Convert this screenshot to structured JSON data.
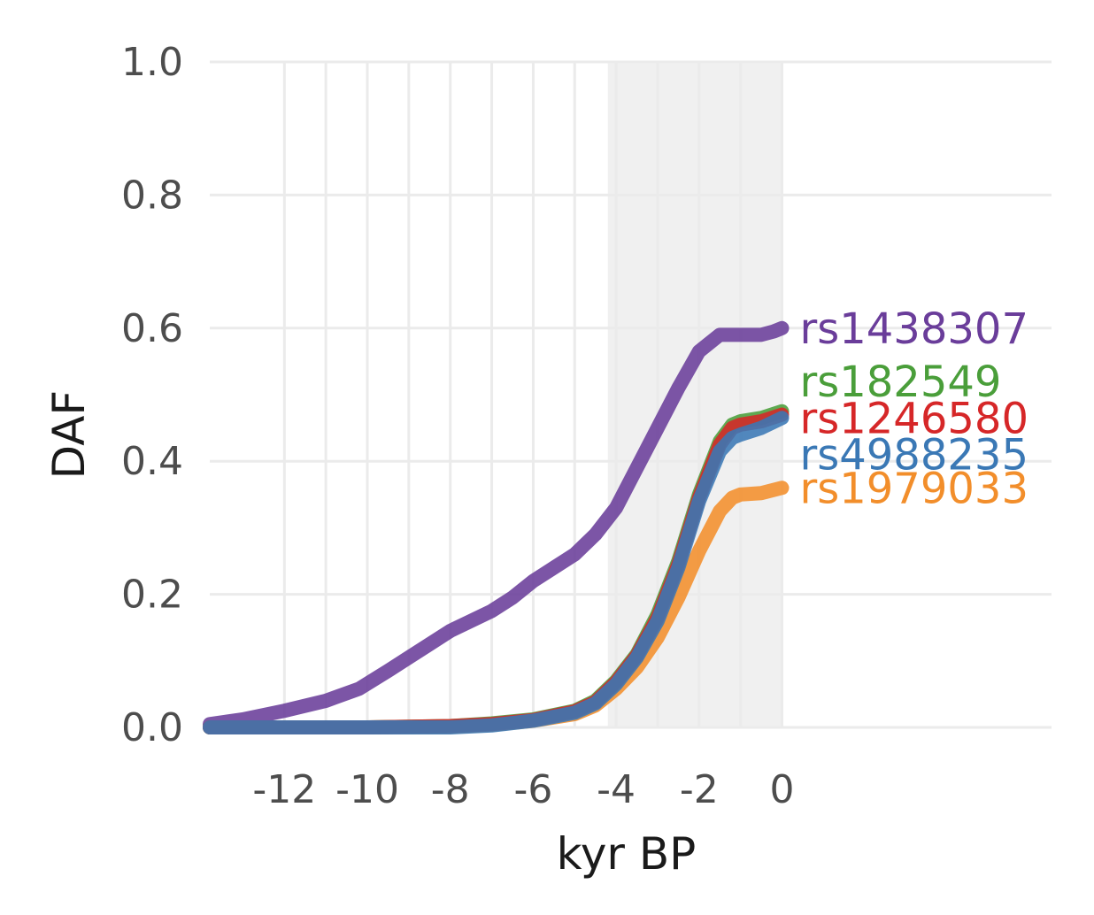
{
  "chart_data": {
    "type": "line",
    "title": "",
    "xlabel": "kyr BP",
    "ylabel": "DAF",
    "xlim": [
      -13.8,
      6.5
    ],
    "ylim": [
      0,
      1.0
    ],
    "x_ticks": [
      -12,
      -10,
      -8,
      -6,
      -4,
      -2,
      0
    ],
    "x_tick_labels": [
      "-12",
      "-10",
      "-8",
      "-6",
      "-4",
      "-2",
      "0"
    ],
    "y_ticks": [
      0,
      0.2,
      0.4,
      0.6,
      0.8,
      1.0
    ],
    "y_tick_labels": [
      "0.0",
      "0.2",
      "0.4",
      "0.6",
      "0.8",
      "1.0"
    ],
    "shaded_region": {
      "x_start": -4.2,
      "x_end": 0,
      "color": "#f0f0f0"
    },
    "grid": true,
    "series": [
      {
        "name": "rs1438307",
        "color": "#6a3d9a",
        "x": [
          -13.8,
          -13,
          -12,
          -11,
          -10.2,
          -9.5,
          -9,
          -8.5,
          -8,
          -7.5,
          -7,
          -6.5,
          -6,
          -5.5,
          -5,
          -4.5,
          -4,
          -3.5,
          -3,
          -2.5,
          -2,
          -1.5,
          -1.2,
          -1,
          -0.5,
          -0.2,
          0
        ],
        "y": [
          0.005,
          0.012,
          0.025,
          0.04,
          0.058,
          0.085,
          0.105,
          0.125,
          0.145,
          0.16,
          0.175,
          0.195,
          0.22,
          0.24,
          0.26,
          0.29,
          0.33,
          0.39,
          0.45,
          0.51,
          0.565,
          0.59,
          0.59,
          0.59,
          0.59,
          0.595,
          0.6
        ]
      },
      {
        "name": "rs182549",
        "color": "#4a9e3a",
        "x": [
          -13.8,
          -12,
          -10,
          -8,
          -7,
          -6,
          -5,
          -4.5,
          -4,
          -3.5,
          -3,
          -2.5,
          -2,
          -1.5,
          -1.2,
          -1,
          -0.5,
          0
        ],
        "y": [
          0,
          0,
          0,
          0.002,
          0.006,
          0.012,
          0.025,
          0.04,
          0.07,
          0.11,
          0.17,
          0.25,
          0.35,
          0.43,
          0.455,
          0.46,
          0.465,
          0.475
        ]
      },
      {
        "name": "rs1246580",
        "color": "#d62728",
        "x": [
          -13.8,
          -12,
          -10,
          -8,
          -7,
          -6,
          -5,
          -4.5,
          -4,
          -3.5,
          -3,
          -2.5,
          -2,
          -1.5,
          -1.2,
          -1,
          -0.5,
          0
        ],
        "y": [
          0,
          0,
          0,
          0.002,
          0.005,
          0.011,
          0.024,
          0.038,
          0.068,
          0.108,
          0.165,
          0.245,
          0.345,
          0.425,
          0.45,
          0.455,
          0.46,
          0.47
        ]
      },
      {
        "name": "rs4988235",
        "color": "#3a78b5",
        "x": [
          -13.8,
          -12,
          -10,
          -8,
          -7,
          -6,
          -5,
          -4.5,
          -4,
          -3.5,
          -3,
          -2.5,
          -2,
          -1.5,
          -1.2,
          -1,
          -0.5,
          0
        ],
        "y": [
          0,
          0,
          0,
          0,
          0.003,
          0.01,
          0.022,
          0.036,
          0.065,
          0.105,
          0.16,
          0.24,
          0.34,
          0.415,
          0.435,
          0.44,
          0.45,
          0.465
        ]
      },
      {
        "name": "rs1979033",
        "color": "#f28e2b",
        "x": [
          -13.8,
          -12,
          -10,
          -8,
          -7,
          -6,
          -5,
          -4.5,
          -4,
          -3.5,
          -3,
          -2.5,
          -2,
          -1.5,
          -1.2,
          -1,
          -0.5,
          0
        ],
        "y": [
          0,
          0,
          0,
          0.001,
          0.004,
          0.01,
          0.02,
          0.033,
          0.058,
          0.09,
          0.135,
          0.195,
          0.265,
          0.325,
          0.345,
          0.35,
          0.352,
          0.36
        ]
      }
    ],
    "series_label_y": [
      0.6,
      0.52,
      0.465,
      0.41,
      0.36
    ]
  }
}
